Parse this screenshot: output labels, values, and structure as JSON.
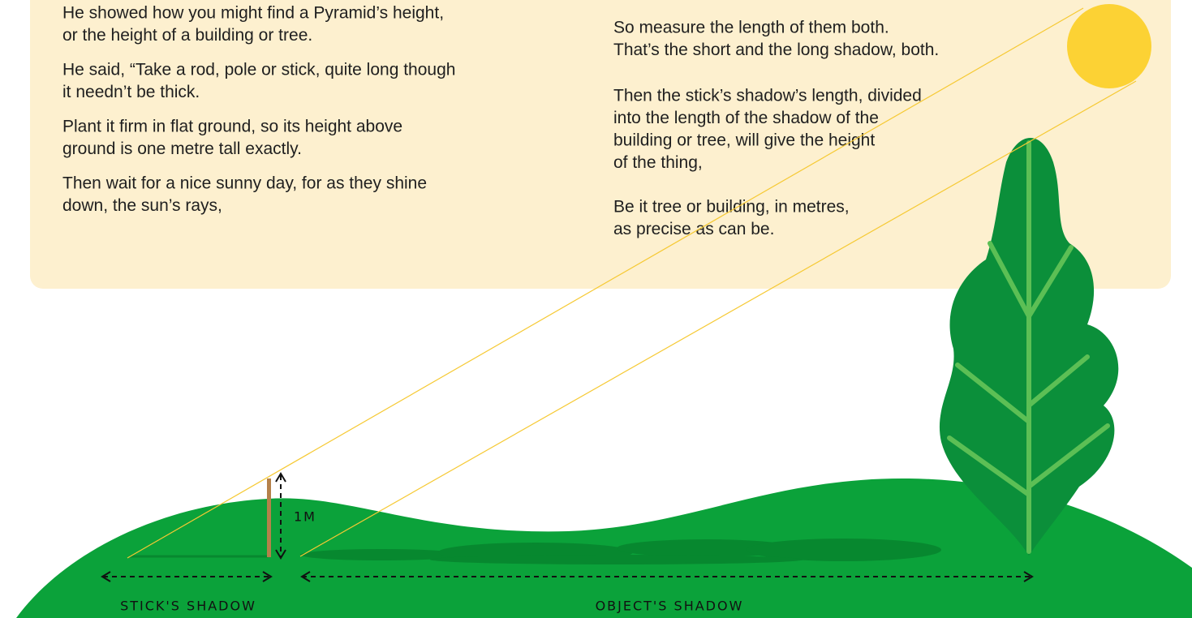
{
  "left_column": {
    "paragraphs": [
      {
        "lines": [
          "He showed how you might find a Pyramid’s height,",
          "or the height of a building or tree."
        ]
      },
      {
        "lines": [
          "He said, “Take a rod, pole or stick, quite long though",
          "it needn’t be thick."
        ]
      },
      {
        "lines": [
          "Plant it firm in flat ground, so its height above",
          "ground is one metre tall exactly."
        ]
      },
      {
        "lines": [
          "Then wait for a nice sunny day, for as they shine",
          "down, the sun’s rays,"
        ]
      }
    ]
  },
  "right_column": {
    "paragraphs": [
      {
        "lines": [
          "So measure the length of them both.",
          "That’s the short and the long shadow, both."
        ]
      },
      {
        "lines": [
          "Then the stick’s shadow’s length, divided",
          "into the length of the shadow of the",
          "building or tree, will give the height",
          "of the thing,"
        ]
      },
      {
        "lines": [
          "Be it tree or building, in metres,",
          "as precise as can be."
        ]
      }
    ]
  },
  "illustration": {
    "height_label": "1M",
    "stick_shadow_label": "STICK'S SHADOW",
    "object_shadow_label": "OBJECT'S SHADOW"
  }
}
